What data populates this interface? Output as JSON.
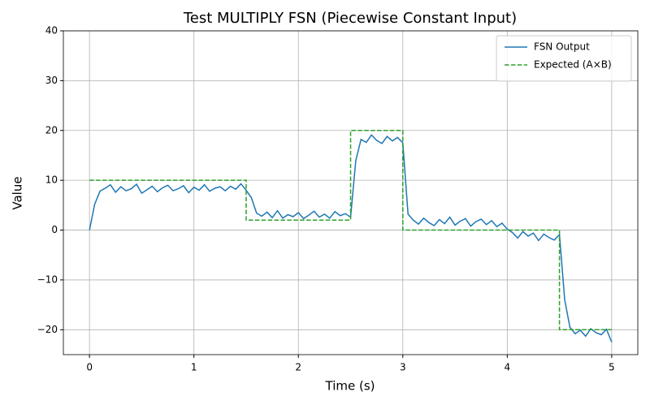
{
  "chart_data": {
    "type": "line",
    "title": "Test MULTIPLY FSN (Piecewise Constant Input)",
    "x_label": "Time (s)",
    "y_label": "Value",
    "xlim": [
      -0.25,
      5.25
    ],
    "ylim": [
      -25,
      40
    ],
    "xticks": [
      0,
      1,
      2,
      3,
      4,
      5
    ],
    "yticks": [
      {
        "value": -20,
        "label": "−20"
      },
      {
        "value": -10,
        "label": "−10"
      },
      0,
      10,
      20,
      30,
      40
    ],
    "grid": true,
    "legend": "upper right",
    "series": [
      {
        "name": "FSN Output",
        "color": "#1f77b4",
        "style": "solid",
        "x": [
          0,
          0.05,
          0.1,
          0.15,
          0.2,
          0.25,
          0.3,
          0.35,
          0.4,
          0.45,
          0.5,
          0.55,
          0.6,
          0.65,
          0.7,
          0.75,
          0.8,
          0.85,
          0.9,
          0.95,
          1,
          1.05,
          1.1,
          1.15,
          1.2,
          1.25,
          1.3,
          1.35,
          1.4,
          1.45,
          1.5,
          1.55,
          1.6,
          1.65,
          1.7,
          1.75,
          1.8,
          1.85,
          1.9,
          1.95,
          2,
          2.05,
          2.1,
          2.15,
          2.2,
          2.25,
          2.3,
          2.35,
          2.4,
          2.45,
          2.5,
          2.55,
          2.6,
          2.65,
          2.7,
          2.75,
          2.8,
          2.85,
          2.9,
          2.95,
          3,
          3.05,
          3.1,
          3.15,
          3.2,
          3.25,
          3.3,
          3.35,
          3.4,
          3.45,
          3.5,
          3.55,
          3.6,
          3.65,
          3.7,
          3.75,
          3.8,
          3.85,
          3.9,
          3.95,
          4,
          4.05,
          4.1,
          4.15,
          4.2,
          4.25,
          4.3,
          4.35,
          4.4,
          4.45,
          4.5,
          4.55,
          4.6,
          4.65,
          4.7,
          4.75,
          4.8,
          4.85,
          4.9,
          4.95,
          5
        ],
        "values": [
          0,
          5.2,
          7.8,
          8.4,
          9.1,
          7.6,
          8.7,
          7.9,
          8.3,
          9.2,
          7.4,
          8.1,
          8.8,
          7.7,
          8.5,
          9.0,
          7.9,
          8.3,
          8.9,
          7.5,
          8.6,
          8.0,
          9.1,
          7.8,
          8.4,
          8.7,
          7.9,
          8.8,
          8.2,
          9.3,
          8.0,
          6.5,
          3.4,
          2.8,
          3.6,
          2.5,
          3.9,
          2.4,
          3.1,
          2.7,
          3.5,
          2.3,
          3.0,
          3.8,
          2.6,
          3.2,
          2.4,
          3.7,
          2.9,
          3.3,
          2.6,
          14.0,
          18.2,
          17.6,
          19.1,
          18.0,
          17.4,
          18.8,
          17.9,
          18.6,
          17.5,
          3.2,
          2.0,
          1.2,
          2.4,
          1.5,
          0.9,
          2.1,
          1.3,
          2.6,
          1.0,
          1.8,
          2.3,
          0.8,
          1.7,
          2.2,
          1.1,
          1.9,
          0.7,
          1.4,
          0.2,
          -0.5,
          -1.6,
          -0.3,
          -1.2,
          -0.6,
          -2.1,
          -0.8,
          -1.5,
          -2.0,
          -0.9,
          -14.0,
          -19.5,
          -20.8,
          -20.1,
          -21.3,
          -19.8,
          -20.6,
          -21.0,
          -19.9,
          -22.5
        ]
      },
      {
        "name": "Expected (A×B)",
        "color": "#2ca02c",
        "style": "dashed",
        "x": [
          0,
          1.5,
          1.5,
          2.5,
          2.5,
          3,
          3,
          4.5,
          4.5,
          5
        ],
        "values": [
          10,
          10,
          2,
          2,
          20,
          20,
          0,
          0,
          -20,
          -20
        ]
      }
    ]
  }
}
